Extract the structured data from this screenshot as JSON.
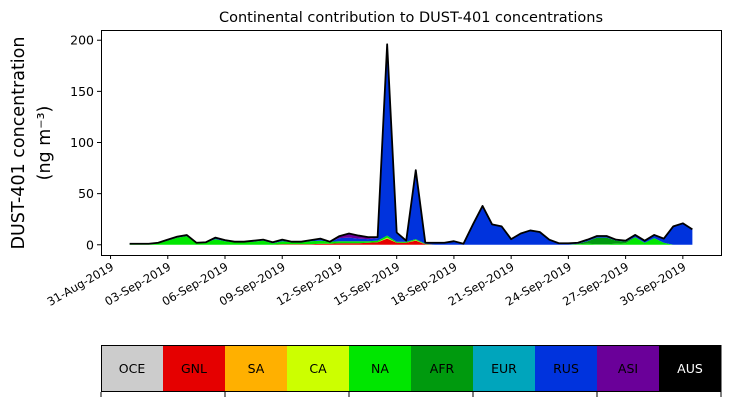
{
  "chart_data": {
    "type": "area",
    "stacked": true,
    "title": "Continental contribution to DUST-401 concentrations",
    "ylabel_line1": "DUST-401 concentration",
    "ylabel_line2": "(ng m⁻³)",
    "xlabel": "",
    "ylim": [
      -10,
      210
    ],
    "xlim": [
      "2019-08-30T12",
      "2019-10-02T00"
    ],
    "yticks": [
      0,
      50,
      100,
      150,
      200
    ],
    "xticks": [
      "2019-08-31",
      "2019-09-03",
      "2019-09-06",
      "2019-09-09",
      "2019-09-12",
      "2019-09-15",
      "2019-09-18",
      "2019-09-21",
      "2019-09-24",
      "2019-09-27",
      "2019-09-30"
    ],
    "xtick_labels": [
      "31-Aug-2019",
      "03-Sep-2019",
      "06-Sep-2019",
      "09-Sep-2019",
      "12-Sep-2019",
      "15-Sep-2019",
      "18-Sep-2019",
      "21-Sep-2019",
      "24-Sep-2019",
      "27-Sep-2019",
      "30-Sep-2019"
    ],
    "grid": false,
    "total_outline_color": "#000000",
    "x": [
      "2019-09-01T00",
      "2019-09-01T12",
      "2019-09-02T00",
      "2019-09-02T12",
      "2019-09-03T00",
      "2019-09-03T12",
      "2019-09-04T00",
      "2019-09-04T12",
      "2019-09-05T00",
      "2019-09-05T12",
      "2019-09-06T00",
      "2019-09-06T12",
      "2019-09-07T00",
      "2019-09-07T12",
      "2019-09-08T00",
      "2019-09-08T12",
      "2019-09-09T00",
      "2019-09-09T12",
      "2019-09-10T00",
      "2019-09-10T12",
      "2019-09-11T00",
      "2019-09-11T12",
      "2019-09-12T00",
      "2019-09-12T12",
      "2019-09-13T00",
      "2019-09-13T12",
      "2019-09-14T00",
      "2019-09-14T12",
      "2019-09-15T00",
      "2019-09-15T12",
      "2019-09-16T00",
      "2019-09-16T12",
      "2019-09-17T00",
      "2019-09-17T12",
      "2019-09-18T00",
      "2019-09-18T12",
      "2019-09-19T00",
      "2019-09-19T12",
      "2019-09-20T00",
      "2019-09-20T12",
      "2019-09-21T00",
      "2019-09-21T12",
      "2019-09-22T00",
      "2019-09-22T12",
      "2019-09-23T00",
      "2019-09-23T12",
      "2019-09-24T00",
      "2019-09-24T12",
      "2019-09-25T00",
      "2019-09-25T12",
      "2019-09-26T00",
      "2019-09-26T12",
      "2019-09-27T00",
      "2019-09-27T12",
      "2019-09-28T00",
      "2019-09-28T12",
      "2019-09-29T00",
      "2019-09-29T12",
      "2019-09-30T00",
      "2019-09-30T12"
    ],
    "series": [
      {
        "name": "OCE",
        "color": "#cccccc",
        "values": [
          0,
          0,
          0,
          0,
          0,
          0,
          0,
          0,
          0,
          0,
          0,
          0,
          0,
          0,
          0,
          0,
          0,
          0,
          0,
          0,
          0,
          0,
          0,
          0,
          0,
          0,
          0,
          0,
          0,
          0,
          0,
          0,
          0,
          0,
          0,
          0,
          0,
          0,
          0,
          0,
          0,
          0,
          0,
          0,
          0,
          0,
          0,
          0,
          0,
          0,
          0,
          0,
          0,
          0,
          0,
          0,
          0,
          0,
          0,
          0
        ]
      },
      {
        "name": "GNL",
        "color": "#e50000",
        "values": [
          0,
          0,
          0,
          0,
          0,
          0,
          0,
          0,
          0,
          0,
          0,
          0,
          0,
          0,
          0,
          0,
          0.5,
          0.5,
          0.5,
          0.5,
          1,
          1,
          1.5,
          1.5,
          1.5,
          2,
          2.5,
          6,
          2,
          2,
          4,
          0.5,
          0,
          0,
          0,
          0,
          0,
          0,
          0,
          0,
          0,
          0,
          0,
          0,
          0,
          0,
          0,
          0,
          0,
          0,
          0,
          0,
          0,
          0,
          0,
          0,
          0,
          0,
          0,
          0
        ]
      },
      {
        "name": "SA",
        "color": "#ffb000",
        "values": [
          0,
          0,
          0,
          0,
          0,
          0,
          0,
          0,
          0,
          0,
          0,
          0,
          0,
          0,
          0,
          0,
          0,
          0,
          0,
          0,
          0,
          0,
          0,
          0,
          0,
          0,
          0,
          0,
          0,
          0,
          0,
          0,
          0,
          0,
          0,
          0,
          0,
          0,
          0,
          0,
          0,
          0,
          0,
          0,
          0,
          0,
          0,
          0,
          0,
          0,
          0,
          0,
          0,
          0,
          0,
          0,
          0,
          0,
          0,
          0
        ]
      },
      {
        "name": "CA",
        "color": "#ccff00",
        "values": [
          0,
          0,
          0,
          0,
          0,
          0,
          0,
          0,
          0,
          0,
          0,
          0,
          0,
          0,
          0,
          0,
          0,
          0,
          0,
          0,
          0,
          0,
          0,
          0,
          0,
          0,
          0,
          1,
          0,
          0,
          0.5,
          0,
          0,
          0,
          0,
          0,
          0,
          0,
          0,
          0,
          0,
          0,
          0,
          0,
          0,
          0,
          0,
          0,
          0,
          0,
          0,
          0,
          0,
          0,
          0,
          0,
          0,
          0,
          0,
          0
        ]
      },
      {
        "name": "NA",
        "color": "#00e600",
        "values": [
          0.5,
          0.5,
          0.5,
          1.5,
          4,
          7,
          8.5,
          1.5,
          2,
          5.5,
          3.5,
          2.5,
          2.5,
          3,
          4,
          1.5,
          3,
          2,
          2,
          3,
          3,
          2,
          2,
          2,
          2,
          1.5,
          1.5,
          2,
          1,
          1,
          1,
          0.5,
          0,
          0,
          0,
          0,
          0,
          0,
          0,
          0,
          0,
          0,
          0,
          0,
          0,
          0,
          0,
          0.5,
          1,
          0.5,
          0.5,
          1,
          1.5,
          7,
          2,
          6.5,
          2,
          0,
          0,
          0
        ]
      },
      {
        "name": "AFR",
        "color": "#009a0e",
        "values": [
          0,
          0,
          0,
          0,
          0,
          0,
          0,
          0,
          0,
          0,
          0,
          0,
          0,
          0,
          0,
          0,
          0,
          0,
          0,
          0,
          0,
          0,
          0,
          0,
          0,
          0,
          0,
          0,
          0,
          0,
          0,
          0,
          0,
          0,
          0,
          0,
          0,
          0,
          0,
          0,
          0,
          0,
          0,
          0,
          0,
          0,
          0,
          0.5,
          2.5,
          6.5,
          6.5,
          3,
          1.5,
          0.5,
          0,
          0,
          0,
          0,
          0,
          0
        ]
      },
      {
        "name": "EUR",
        "color": "#00a5bc",
        "values": [
          0,
          0,
          0,
          0,
          0,
          0,
          0,
          0,
          0,
          0,
          0,
          0,
          0,
          0,
          0,
          0,
          0,
          0,
          0,
          0,
          0,
          0,
          0,
          0,
          0,
          0,
          0,
          0,
          0,
          0,
          0,
          0,
          0,
          0,
          0,
          0,
          0,
          0,
          0,
          0,
          0,
          0,
          0,
          0,
          0,
          0,
          0,
          0,
          0,
          0,
          0,
          0,
          0,
          0,
          0,
          0,
          0,
          0,
          0,
          0
        ]
      },
      {
        "name": "RUS",
        "color": "#0033dd",
        "values": [
          0.5,
          0.5,
          0.5,
          0.5,
          1,
          1,
          1,
          0.5,
          0.5,
          1.5,
          1,
          0.5,
          0.5,
          1,
          1,
          1,
          1.5,
          0.5,
          0.5,
          1,
          2,
          0,
          3,
          3.5,
          2.5,
          2,
          2.5,
          186,
          9,
          1,
          67.5,
          1,
          2,
          2,
          3.5,
          1,
          20,
          38,
          20,
          18,
          5.5,
          11,
          14,
          12.5,
          5,
          1.5,
          1.5,
          1,
          1.5,
          1.6,
          1.6,
          1,
          1,
          2.1,
          2,
          3.1,
          4,
          17.5,
          20.5,
          15
        ]
      },
      {
        "name": "ASI",
        "color": "#6a0099",
        "values": [
          0,
          0,
          0,
          0,
          0,
          0,
          0,
          0,
          0,
          0,
          0,
          0,
          0,
          0,
          0,
          0,
          0,
          0,
          0,
          0,
          0,
          0,
          2,
          4,
          3,
          2,
          1,
          1,
          0,
          0,
          0,
          0,
          0,
          0,
          0,
          0,
          0,
          0,
          0,
          0,
          0,
          0,
          0,
          0,
          0,
          0,
          0,
          0,
          0,
          0,
          0,
          0,
          0,
          0,
          0,
          0,
          0,
          0.5,
          0.5,
          0
        ]
      },
      {
        "name": "AUS",
        "color": "#000000",
        "values": [
          0,
          0,
          0,
          0,
          0,
          0,
          0,
          0,
          0,
          0,
          0,
          0,
          0,
          0,
          0,
          0,
          0,
          0,
          0,
          0,
          0,
          0,
          0,
          0,
          0,
          0,
          0,
          0,
          0,
          0,
          0,
          0,
          0,
          0,
          0,
          0,
          0,
          0,
          0,
          0,
          0,
          0,
          0,
          0,
          0,
          0,
          0,
          0,
          0,
          0,
          0,
          0,
          0,
          0,
          0,
          0,
          0,
          0,
          0,
          0
        ]
      }
    ],
    "legend": {
      "placement": "bottom-colorbar",
      "items": [
        {
          "label": "OCE",
          "color": "#cccccc",
          "text_color": "#000000"
        },
        {
          "label": "GNL",
          "color": "#e50000",
          "text_color": "#000000"
        },
        {
          "label": "SA",
          "color": "#ffb000",
          "text_color": "#000000"
        },
        {
          "label": "CA",
          "color": "#ccff00",
          "text_color": "#000000"
        },
        {
          "label": "NA",
          "color": "#00e600",
          "text_color": "#000000"
        },
        {
          "label": "AFR",
          "color": "#009a0e",
          "text_color": "#000000"
        },
        {
          "label": "EUR",
          "color": "#00a5bc",
          "text_color": "#000000"
        },
        {
          "label": "RUS",
          "color": "#0033dd",
          "text_color": "#000000"
        },
        {
          "label": "ASI",
          "color": "#6a0099",
          "text_color": "#000000"
        },
        {
          "label": "AUS",
          "color": "#000000",
          "text_color": "#ffffff"
        }
      ]
    }
  }
}
